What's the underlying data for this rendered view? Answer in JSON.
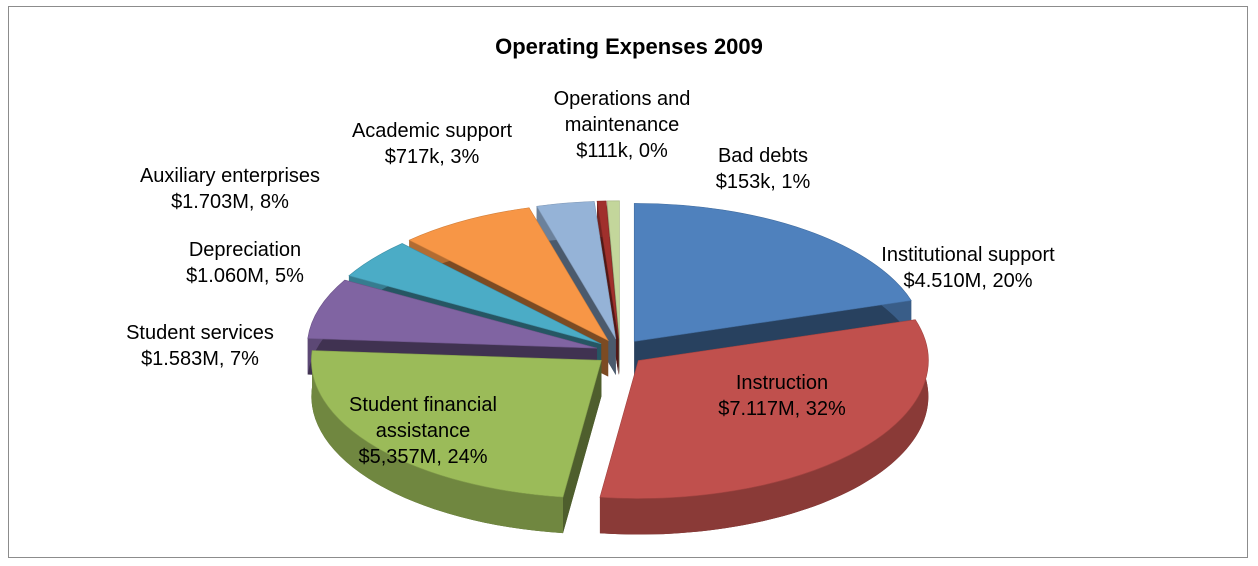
{
  "chart_data": {
    "type": "pie",
    "title": "Operating Expenses 2009",
    "categories": [
      "Institutional support",
      "Instruction",
      "Student financial assistance",
      "Student services",
      "Depreciation",
      "Auxiliary enterprises",
      "Academic support",
      "Operations and maintenance",
      "Bad debts"
    ],
    "values": [
      4510000,
      7117000,
      5357000,
      1583000,
      1060000,
      1703000,
      717000,
      111000,
      153000
    ],
    "value_labels": [
      "$4.510M, 20%",
      "$7.117M, 32%",
      "$5,357M, 24%",
      "$1.583M, 7%",
      "$1.060M, 5%",
      "$1.703M, 8%",
      "$717k, 3%",
      "$111k, 0%",
      "$153k, 1%"
    ],
    "colors": [
      "#4f81bd",
      "#c0504d",
      "#9bbb59",
      "#8064a2",
      "#4bacc6",
      "#f79646",
      "#95b3d7",
      "#a0302c",
      "#c3d69b"
    ]
  }
}
